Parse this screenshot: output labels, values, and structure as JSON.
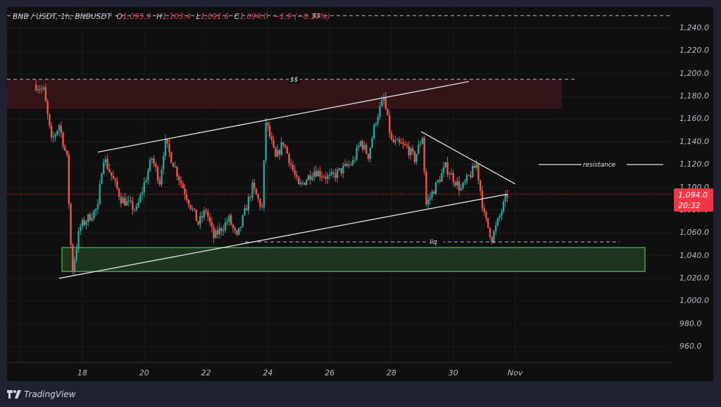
{
  "legend": {
    "symbol": "BNB / USDT, 1h, BNBUSDT",
    "open_label": "O",
    "open": "1,095.9",
    "high_label": "H",
    "high": "1,103.4",
    "low_label": "L",
    "low": "1,091.6",
    "close_label": "C",
    "close": "1,094.0",
    "change": "−1.9 (−0.17%)"
  },
  "price_tag": {
    "price": "1,094.0",
    "countdown": "20:32"
  },
  "footer": {
    "brand": "TradingView"
  },
  "colors": {
    "up": "#26a69a",
    "down": "#ef5350",
    "background": "#0f0f10",
    "frame": "#1e2230",
    "price_tag": "#f23645",
    "supply_zone": "#3a1519",
    "demand_zone": "#1f3a1f",
    "demand_zone_border": "#4caf50",
    "annotation_line": "#e6e6e6"
  },
  "annotations": {
    "top_liquidity_label": "$$",
    "upper_liquidity_label": "$$",
    "resistance_label": "resistance",
    "liquidity_label": "liq"
  },
  "chart_data": {
    "type": "candlestick",
    "title": "BNB / USDT, 1h, BNBUSDT",
    "xlabel": "",
    "ylabel": "",
    "y_ticks": [
      "1,240.0",
      "1,220.0",
      "1,200.0",
      "1,180.0",
      "1,160.0",
      "1,140.0",
      "1,120.0",
      "1,100.0",
      "1,080.0",
      "1,060.0",
      "1,040.0",
      "1,020.0",
      "1,000.0",
      "980.0",
      "960.0"
    ],
    "x_ticks": [
      "18",
      "20",
      "22",
      "24",
      "26",
      "28",
      "30",
      "Nov"
    ],
    "ylim": [
      950,
      1252
    ],
    "current_price": 1094.0,
    "ohlc_latest": {
      "open": 1095.9,
      "high": 1103.4,
      "low": 1091.6,
      "close": 1094.0,
      "change": -1.9,
      "change_pct": -0.17
    },
    "price_path_waypoints": [
      {
        "date": "Oct 16 12:00",
        "price": 1190
      },
      {
        "date": "Oct 16 18:00",
        "price": 1185
      },
      {
        "date": "Oct 17 00:00",
        "price": 1140
      },
      {
        "date": "Oct 17 06:00",
        "price": 1155
      },
      {
        "date": "Oct 17 12:00",
        "price": 1125
      },
      {
        "date": "Oct 17 16:00",
        "price": 1024
      },
      {
        "date": "Oct 17 22:00",
        "price": 1065
      },
      {
        "date": "Oct 18 12:00",
        "price": 1082
      },
      {
        "date": "Oct 18 16:00",
        "price": 1128
      },
      {
        "date": "Oct 19 06:00",
        "price": 1090
      },
      {
        "date": "Oct 19 18:00",
        "price": 1080
      },
      {
        "date": "Oct 20 06:00",
        "price": 1126
      },
      {
        "date": "Oct 20 12:00",
        "price": 1105
      },
      {
        "date": "Oct 20 16:00",
        "price": 1140
      },
      {
        "date": "Oct 21 06:00",
        "price": 1100
      },
      {
        "date": "Oct 21 18:00",
        "price": 1068
      },
      {
        "date": "Oct 22 00:00",
        "price": 1080
      },
      {
        "date": "Oct 22 06:00",
        "price": 1056
      },
      {
        "date": "Oct 22 18:00",
        "price": 1072
      },
      {
        "date": "Oct 23 00:00",
        "price": 1055
      },
      {
        "date": "Oct 23 12:00",
        "price": 1100
      },
      {
        "date": "Oct 23 20:00",
        "price": 1080
      },
      {
        "date": "Oct 23 22:00",
        "price": 1160
      },
      {
        "date": "Oct 24 06:00",
        "price": 1125
      },
      {
        "date": "Oct 24 12:00",
        "price": 1140
      },
      {
        "date": "Oct 25 00:00",
        "price": 1100
      },
      {
        "date": "Oct 25 12:00",
        "price": 1115
      },
      {
        "date": "Oct 26 00:00",
        "price": 1108
      },
      {
        "date": "Oct 26 18:00",
        "price": 1122
      },
      {
        "date": "Oct 27 00:00",
        "price": 1140
      },
      {
        "date": "Oct 27 06:00",
        "price": 1128
      },
      {
        "date": "Oct 27 12:00",
        "price": 1160
      },
      {
        "date": "Oct 27 18:00",
        "price": 1178
      },
      {
        "date": "Oct 28 00:00",
        "price": 1140
      },
      {
        "date": "Oct 28 12:00",
        "price": 1135
      },
      {
        "date": "Oct 28 18:00",
        "price": 1125
      },
      {
        "date": "Oct 29 00:00",
        "price": 1145
      },
      {
        "date": "Oct 29 03:00",
        "price": 1085
      },
      {
        "date": "Oct 29 18:00",
        "price": 1118
      },
      {
        "date": "Oct 30 06:00",
        "price": 1098
      },
      {
        "date": "Oct 30 18:00",
        "price": 1120
      },
      {
        "date": "Oct 31 00:00",
        "price": 1075
      },
      {
        "date": "Oct 31 06:00",
        "price": 1055
      },
      {
        "date": "Oct 31 18:00",
        "price": 1094
      }
    ],
    "zones": [
      {
        "name": "supply",
        "price_from": 1169,
        "price_to": 1195
      },
      {
        "name": "demand",
        "price_from": 1026,
        "price_to": 1047
      }
    ],
    "levels": [
      {
        "name": "$$ (top)",
        "price": 1251,
        "style": "dashed"
      },
      {
        "name": "$$",
        "price": 1195,
        "style": "dashed"
      },
      {
        "name": "resistance",
        "price": 1120,
        "style": "solid"
      },
      {
        "name": "liq",
        "price": 1052,
        "style": "dashed"
      }
    ],
    "trendlines": [
      {
        "name": "ascending channel top",
        "from": [
          "Oct 18 12:00",
          1131
        ],
        "to": [
          "Oct 30 12:00",
          1193
        ]
      },
      {
        "name": "ascending channel bottom",
        "from": [
          "Oct 17 06:00",
          1020
        ],
        "to": [
          "Oct 31 18:00",
          1094
        ]
      },
      {
        "name": "descending resistance",
        "from": [
          "Oct 28 23:00",
          1149
        ],
        "to": [
          "Nov 1 00:00",
          1103
        ]
      }
    ]
  }
}
